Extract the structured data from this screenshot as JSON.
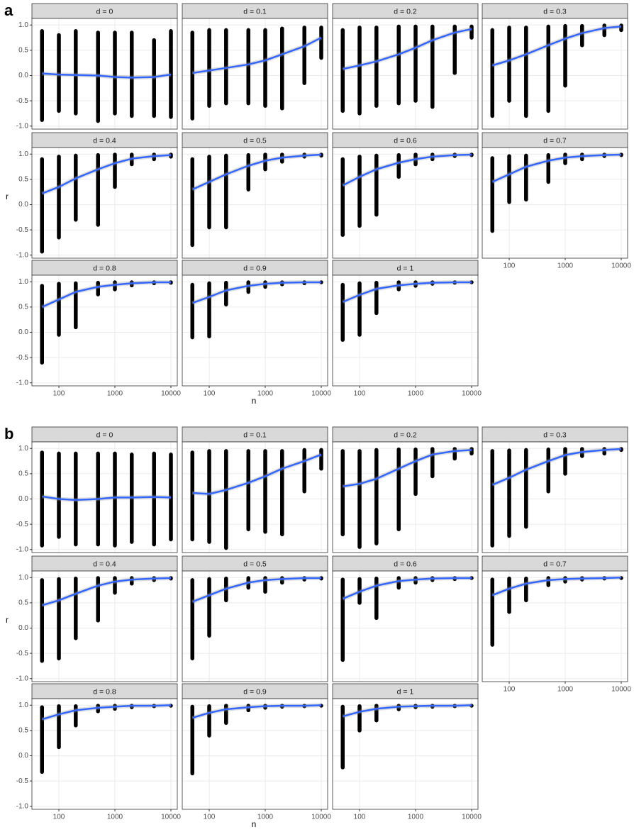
{
  "chart_data": [
    {
      "type": "facet-scatter",
      "label": "a",
      "x_label": "n",
      "y_label": "r",
      "xscale": "log",
      "xlim": [
        33,
        13000
      ],
      "xticks": [
        100,
        1000,
        10000
      ],
      "ylim": [
        -1.06,
        1.13
      ],
      "yticks": [
        {
          "value": -1,
          "label": "-1.0"
        },
        {
          "value": -0.5,
          "label": "-0.5"
        },
        {
          "value": 0,
          "label": "0.0"
        },
        {
          "value": 0.5,
          "label": "0.5"
        },
        {
          "value": 1,
          "label": "1.0"
        }
      ],
      "grid": true,
      "point_color": "#000000",
      "fit_color": "#3366ff",
      "x": [
        50,
        100,
        200,
        500,
        1000,
        2000,
        5000,
        10000
      ],
      "facets": [
        {
          "title": "d = 0",
          "min": [
            -0.88,
            -0.7,
            -0.75,
            -0.9,
            -0.75,
            -0.8,
            -0.8,
            -0.82
          ],
          "max": [
            0.88,
            0.8,
            0.88,
            0.85,
            0.85,
            0.85,
            0.7,
            0.88
          ],
          "fit": [
            0.04,
            0.02,
            0.01,
            0,
            -0.03,
            -0.04,
            -0.03,
            0.02
          ]
        },
        {
          "title": "d = 0.1",
          "min": [
            -0.85,
            -0.6,
            -0.55,
            -0.55,
            -0.6,
            -0.65,
            -0.15,
            0.35
          ],
          "max": [
            0.85,
            0.9,
            0.9,
            0.9,
            0.9,
            0.93,
            0.95,
            0.95
          ],
          "fit": [
            0.05,
            0.1,
            0.15,
            0.22,
            0.3,
            0.42,
            0.58,
            0.75
          ]
        },
        {
          "title": "d = 0.2",
          "min": [
            -0.7,
            -0.75,
            -0.6,
            -0.55,
            -0.5,
            -0.62,
            0.05,
            0.75
          ],
          "max": [
            0.9,
            0.95,
            0.95,
            0.97,
            0.97,
            0.97,
            0.97,
            0.97
          ],
          "fit": [
            0.13,
            0.2,
            0.28,
            0.42,
            0.55,
            0.7,
            0.85,
            0.92
          ]
        },
        {
          "title": "d = 0.3",
          "min": [
            -0.8,
            -0.5,
            -0.8,
            -0.7,
            -0.2,
            0.6,
            0.8,
            0.9
          ],
          "max": [
            0.9,
            0.95,
            0.95,
            0.97,
            0.98,
            0.98,
            0.99,
            0.99
          ],
          "fit": [
            0.2,
            0.3,
            0.42,
            0.6,
            0.73,
            0.84,
            0.94,
            0.97
          ]
        },
        {
          "title": "d = 0.4",
          "min": [
            -0.93,
            -0.65,
            -0.3,
            -0.4,
            0.35,
            0.8,
            0.9,
            0.95
          ],
          "max": [
            0.9,
            0.95,
            0.97,
            0.98,
            0.99,
            0.99,
            0.99,
            0.99
          ],
          "fit": [
            0.22,
            0.35,
            0.52,
            0.7,
            0.82,
            0.91,
            0.96,
            0.98
          ]
        },
        {
          "title": "d = 0.5",
          "min": [
            -0.8,
            -0.45,
            -0.45,
            0.3,
            0.7,
            0.85,
            0.95,
            0.97
          ],
          "max": [
            0.9,
            0.95,
            0.97,
            0.98,
            0.99,
            0.99,
            0.99,
            0.99
          ],
          "fit": [
            0.3,
            0.45,
            0.6,
            0.77,
            0.87,
            0.93,
            0.97,
            0.99
          ]
        },
        {
          "title": "d = 0.6",
          "min": [
            -0.6,
            -0.42,
            -0.2,
            0.55,
            0.8,
            0.9,
            0.96,
            0.98
          ],
          "max": [
            0.9,
            0.95,
            0.97,
            0.98,
            0.99,
            0.99,
            0.99,
            0.99
          ],
          "fit": [
            0.38,
            0.55,
            0.7,
            0.83,
            0.9,
            0.95,
            0.98,
            0.99
          ]
        },
        {
          "title": "d = 0.7",
          "min": [
            -0.52,
            0.05,
            0.1,
            0.45,
            0.82,
            0.9,
            0.96,
            0.98
          ],
          "max": [
            0.92,
            0.96,
            0.97,
            0.98,
            0.99,
            0.99,
            0.99,
            0.99
          ],
          "fit": [
            0.45,
            0.6,
            0.75,
            0.87,
            0.93,
            0.96,
            0.98,
            0.99
          ]
        },
        {
          "title": "d = 0.8",
          "min": [
            -0.6,
            -0.05,
            0.1,
            0.75,
            0.85,
            0.93,
            0.97,
            0.98
          ],
          "max": [
            0.92,
            0.96,
            0.97,
            0.98,
            0.99,
            0.99,
            0.99,
            0.99
          ],
          "fit": [
            0.5,
            0.65,
            0.8,
            0.9,
            0.94,
            0.97,
            0.99,
            0.99
          ]
        },
        {
          "title": "d = 0.9",
          "min": [
            -0.1,
            -0.08,
            0.55,
            0.8,
            0.9,
            0.95,
            0.97,
            0.99
          ],
          "max": [
            0.94,
            0.97,
            0.98,
            0.99,
            0.99,
            0.99,
            0.99,
            0.99
          ],
          "fit": [
            0.58,
            0.7,
            0.83,
            0.92,
            0.96,
            0.98,
            0.99,
            0.99
          ]
        },
        {
          "title": "d = 1",
          "min": [
            -0.15,
            -0.05,
            0.38,
            0.85,
            0.92,
            0.96,
            0.98,
            0.99
          ],
          "max": [
            0.94,
            0.97,
            0.98,
            0.99,
            0.99,
            0.99,
            0.99,
            0.99
          ],
          "fit": [
            0.6,
            0.74,
            0.86,
            0.93,
            0.96,
            0.98,
            0.99,
            0.99
          ]
        }
      ]
    },
    {
      "type": "facet-scatter",
      "label": "b",
      "x_label": "n",
      "y_label": "r",
      "xscale": "log",
      "xlim": [
        33,
        13000
      ],
      "xticks": [
        100,
        1000,
        10000
      ],
      "ylim": [
        -1.06,
        1.13
      ],
      "yticks": [
        {
          "value": -1,
          "label": "-1.0"
        },
        {
          "value": -0.5,
          "label": "-0.5"
        },
        {
          "value": 0,
          "label": "0.0"
        },
        {
          "value": 0.5,
          "label": "0.5"
        },
        {
          "value": 1,
          "label": "1.0"
        }
      ],
      "grid": true,
      "point_color": "#000000",
      "fit_color": "#3366ff",
      "x": [
        50,
        100,
        200,
        500,
        1000,
        2000,
        5000,
        10000
      ],
      "facets": [
        {
          "title": "d = 0",
          "min": [
            -0.92,
            -0.75,
            -0.9,
            -0.9,
            -0.92,
            -0.85,
            -0.9,
            -0.8
          ],
          "max": [
            0.92,
            0.9,
            0.9,
            0.9,
            0.9,
            0.88,
            0.9,
            0.88
          ],
          "fit": [
            0.05,
            0,
            -0.02,
            0,
            0.03,
            0.03,
            0.04,
            0.03
          ]
        },
        {
          "title": "d = 0.1",
          "min": [
            -0.8,
            -0.85,
            -0.97,
            -0.6,
            -0.65,
            -0.7,
            0.15,
            0.6
          ],
          "max": [
            0.92,
            0.95,
            0.95,
            0.95,
            0.95,
            0.95,
            0.97,
            0.97
          ],
          "fit": [
            0.12,
            0.1,
            0.18,
            0.32,
            0.45,
            0.6,
            0.75,
            0.88
          ]
        },
        {
          "title": "d = 0.2",
          "min": [
            -0.7,
            -0.95,
            -0.88,
            -0.6,
            0.1,
            0.45,
            0.8,
            0.9
          ],
          "max": [
            0.95,
            0.95,
            0.97,
            0.98,
            0.98,
            0.99,
            0.99,
            0.99
          ],
          "fit": [
            0.25,
            0.3,
            0.4,
            0.6,
            0.75,
            0.88,
            0.95,
            0.97
          ]
        },
        {
          "title": "d = 0.3",
          "min": [
            -0.92,
            -0.73,
            -0.55,
            0.15,
            0.5,
            0.85,
            0.9,
            0.97
          ],
          "max": [
            0.95,
            0.96,
            0.97,
            0.98,
            0.99,
            0.99,
            0.99,
            0.99
          ],
          "fit": [
            0.28,
            0.42,
            0.58,
            0.75,
            0.87,
            0.93,
            0.97,
            0.99
          ]
        },
        {
          "title": "d = 0.4",
          "min": [
            -0.65,
            -0.6,
            -0.2,
            0.15,
            0.7,
            0.88,
            0.95,
            0.98
          ],
          "max": [
            0.95,
            0.97,
            0.98,
            0.99,
            0.99,
            0.99,
            0.99,
            0.99
          ],
          "fit": [
            0.45,
            0.55,
            0.68,
            0.84,
            0.92,
            0.96,
            0.98,
            0.99
          ]
        },
        {
          "title": "d = 0.5",
          "min": [
            -0.6,
            -0.15,
            0.55,
            0.8,
            0.72,
            0.9,
            0.96,
            0.98
          ],
          "max": [
            0.95,
            0.97,
            0.98,
            0.99,
            0.99,
            0.99,
            0.99,
            0.99
          ],
          "fit": [
            0.52,
            0.65,
            0.78,
            0.9,
            0.95,
            0.97,
            0.99,
            0.99
          ]
        },
        {
          "title": "d = 0.6",
          "min": [
            -0.63,
            0.5,
            0.2,
            0.8,
            0.9,
            0.95,
            0.97,
            0.99
          ],
          "max": [
            0.96,
            0.97,
            0.98,
            0.99,
            0.99,
            0.99,
            0.99,
            0.99
          ],
          "fit": [
            0.58,
            0.72,
            0.84,
            0.93,
            0.96,
            0.98,
            0.99,
            0.99
          ]
        },
        {
          "title": "d = 0.7",
          "min": [
            -0.33,
            0.32,
            0.55,
            0.85,
            0.92,
            0.96,
            0.98,
            0.99
          ],
          "max": [
            0.96,
            0.98,
            0.98,
            0.99,
            0.99,
            0.99,
            0.99,
            0.99
          ],
          "fit": [
            0.65,
            0.78,
            0.88,
            0.95,
            0.97,
            0.98,
            0.99,
            1
          ]
        },
        {
          "title": "d = 0.8",
          "min": [
            -0.32,
            0.17,
            0.6,
            0.88,
            0.93,
            0.96,
            0.98,
            0.99
          ],
          "max": [
            0.96,
            0.98,
            0.98,
            0.99,
            0.99,
            0.99,
            0.99,
            0.99
          ],
          "fit": [
            0.72,
            0.82,
            0.9,
            0.95,
            0.97,
            0.99,
            0.99,
            1
          ]
        },
        {
          "title": "d = 0.9",
          "min": [
            -0.35,
            0.4,
            0.65,
            0.9,
            0.95,
            0.97,
            0.98,
            0.99
          ],
          "max": [
            0.97,
            0.98,
            0.99,
            0.99,
            0.99,
            0.99,
            0.99,
            0.99
          ],
          "fit": [
            0.75,
            0.85,
            0.92,
            0.96,
            0.98,
            0.99,
            0.99,
            1
          ]
        },
        {
          "title": "d = 1",
          "min": [
            -0.23,
            0.5,
            0.7,
            0.92,
            0.96,
            0.97,
            0.98,
            0.99
          ],
          "max": [
            0.97,
            0.98,
            0.99,
            0.99,
            0.99,
            0.99,
            0.99,
            0.99
          ],
          "fit": [
            0.78,
            0.87,
            0.93,
            0.97,
            0.98,
            0.99,
            0.99,
            1
          ]
        }
      ]
    }
  ]
}
